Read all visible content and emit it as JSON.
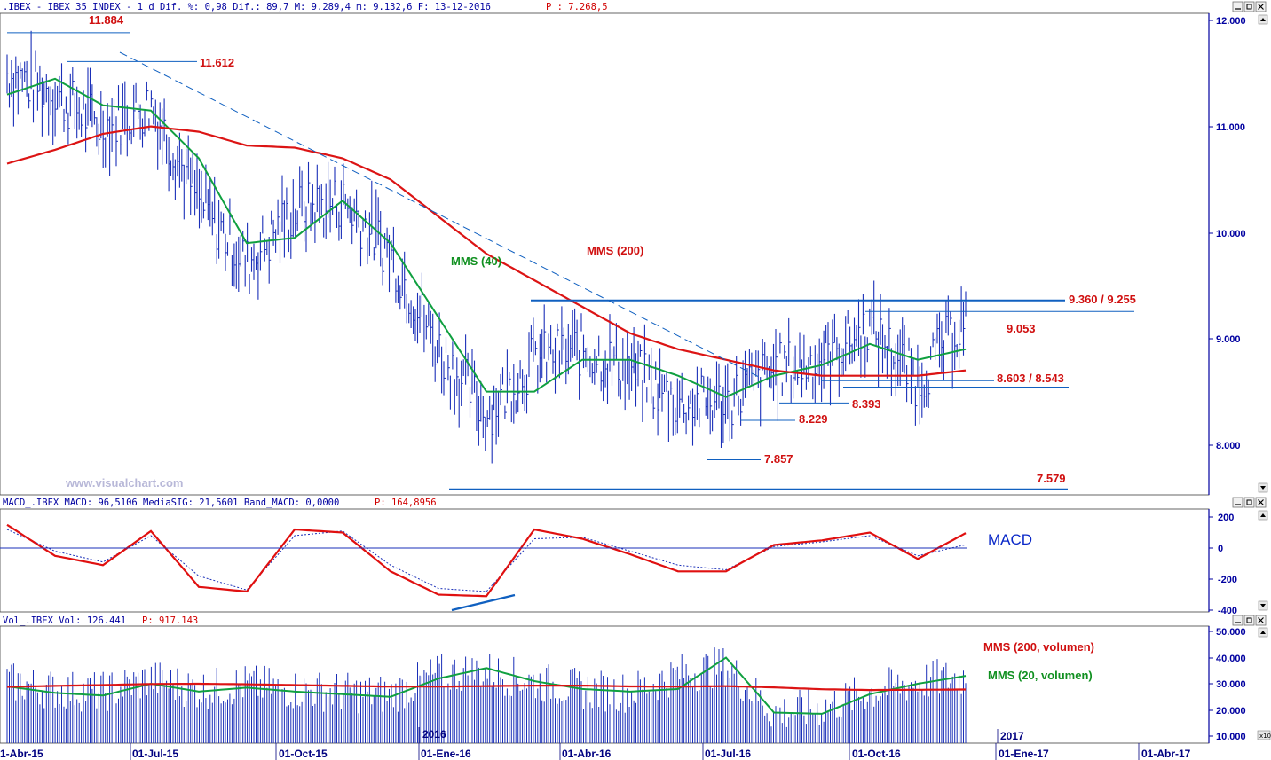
{
  "colors": {
    "price_bars": "#1a2fb8",
    "ma200": "#dc1414",
    "ma40": "#10a040",
    "macd": "#e01010",
    "signal": "#1a2fb8",
    "level_lines": "#1060c0",
    "volume_bars": "#1a2fb8",
    "axis_text": "#0000a0",
    "annotation": "#d01010"
  },
  "panels": {
    "price": {
      "header": ".IBEX - IBEX 35 INDEX -  1 d Dif. %: 0,98 Dif.: 89,7 M: 9.289,4 m: 9.132,6 F: 13-12-2016",
      "header_last": "P : 7.268,5",
      "watermark": "www.visualchart.com",
      "labels": {
        "ma40": "MMS (40)",
        "ma200": "MMS (200)"
      },
      "y_ticks": [
        "12.000",
        "11.000",
        "10.000",
        "9.000",
        "8.000"
      ]
    },
    "macd": {
      "header": "MACD_.IBEX MACD: 96,5106 MediaSIG: 21,5601 Band_MACD: 0,0000",
      "header_last": "P: 164,8956",
      "label": "MACD",
      "y_ticks": [
        "200",
        "0",
        "-200",
        "-400"
      ]
    },
    "volume": {
      "header": "Vol_.IBEX Vol: 126.441",
      "header_last": "P: 917.143",
      "labels": {
        "ma200": "MMS (200, volumen)",
        "ma20": "MMS (20, volumen)"
      },
      "y_ticks": [
        "50.000",
        "40.000",
        "30.000",
        "20.000",
        "10.000"
      ],
      "scale_badge": "x10",
      "year_labels": [
        "2016",
        "2017"
      ]
    }
  },
  "x_axis": {
    "ticks": [
      "1-Abr-15",
      "01-Jul-15",
      "01-Oct-15",
      "01-Ene-16",
      "01-Abr-16",
      "01-Jul-16",
      "01-Oct-16",
      "01-Ene-17",
      "01-Abr-17"
    ]
  },
  "chart_data": [
    {
      "type": "line",
      "title": ".IBEX - IBEX 35 INDEX",
      "x_range": [
        "2015-04-01",
        "2017-04-01"
      ],
      "ylim": [
        7500,
        12100
      ],
      "x": [
        "2015-04",
        "2015-05",
        "2015-06",
        "2015-07",
        "2015-08",
        "2015-09",
        "2015-10",
        "2015-11",
        "2015-12",
        "2016-01",
        "2016-02",
        "2016-03",
        "2016-04",
        "2016-05",
        "2016-06",
        "2016-07",
        "2016-08",
        "2016-09",
        "2016-10",
        "2016-11",
        "2016-12"
      ],
      "series": [
        {
          "name": "IBEX (daily bars)",
          "values": [
            11500,
            11300,
            11000,
            11200,
            10300,
            9700,
            10200,
            10300,
            9800,
            8900,
            8300,
            8800,
            8900,
            8700,
            8400,
            8400,
            8700,
            8800,
            9100,
            8600,
            9200
          ]
        },
        {
          "name": "MMS (40)",
          "values": [
            11300,
            11450,
            11200,
            11150,
            10700,
            9900,
            9950,
            10300,
            9900,
            9200,
            8500,
            8500,
            8800,
            8800,
            8650,
            8450,
            8650,
            8750,
            8950,
            8800,
            8900
          ]
        },
        {
          "name": "MMS (200)",
          "values": [
            10650,
            10780,
            10930,
            11000,
            10950,
            10820,
            10800,
            10700,
            10500,
            10150,
            9800,
            9550,
            9300,
            9050,
            8900,
            8800,
            8700,
            8650,
            8650,
            8650,
            8700
          ]
        }
      ],
      "levels": [
        {
          "label": "11.884",
          "value": 11884
        },
        {
          "label": "11.612",
          "value": 11612
        },
        {
          "label": "9.360 / 9.255",
          "value": 9360,
          "value2": 9255
        },
        {
          "label": "9.053",
          "value": 9053
        },
        {
          "label": "8.603 / 8.543",
          "value": 8603,
          "value2": 8543
        },
        {
          "label": "8.393",
          "value": 8393
        },
        {
          "label": "8.229",
          "value": 8229
        },
        {
          "label": "7.857",
          "value": 7857
        },
        {
          "label": "7.579",
          "value": 7579
        }
      ]
    },
    {
      "type": "line",
      "title": "MACD",
      "ylim": [
        -450,
        250
      ],
      "x": [
        "2015-04",
        "2015-05",
        "2015-06",
        "2015-07",
        "2015-08",
        "2015-09",
        "2015-10",
        "2015-11",
        "2015-12",
        "2016-01",
        "2016-02",
        "2016-03",
        "2016-04",
        "2016-05",
        "2016-06",
        "2016-07",
        "2016-08",
        "2016-09",
        "2016-10",
        "2016-11",
        "2016-12"
      ],
      "series": [
        {
          "name": "MACD",
          "values": [
            150,
            -50,
            -110,
            110,
            -250,
            -280,
            120,
            100,
            -150,
            -300,
            -310,
            120,
            60,
            -40,
            -150,
            -150,
            20,
            50,
            100,
            -70,
            96.5
          ]
        },
        {
          "name": "MediaSIG",
          "values": [
            120,
            -20,
            -90,
            80,
            -180,
            -270,
            80,
            110,
            -110,
            -260,
            -280,
            60,
            70,
            -20,
            -110,
            -140,
            10,
            40,
            80,
            -50,
            21.6
          ]
        }
      ]
    },
    {
      "type": "bar",
      "title": "Vol",
      "ylim": [
        10000,
        52000
      ],
      "x": [
        "2015-04",
        "2015-05",
        "2015-06",
        "2015-07",
        "2015-08",
        "2015-09",
        "2015-10",
        "2015-11",
        "2015-12",
        "2016-01",
        "2016-02",
        "2016-03",
        "2016-04",
        "2016-05",
        "2016-06",
        "2016-07",
        "2016-08",
        "2016-09",
        "2016-10",
        "2016-11",
        "2016-12"
      ],
      "series": [
        {
          "name": "Vol",
          "values": [
            30000,
            27000,
            26000,
            31000,
            27000,
            29000,
            27000,
            26000,
            25000,
            33000,
            34000,
            30000,
            27000,
            26000,
            33000,
            36000,
            18000,
            20000,
            26000,
            30000,
            32000
          ]
        },
        {
          "name": "MMS (200, volumen)",
          "values": [
            28800,
            29200,
            29500,
            29900,
            30000,
            29800,
            29500,
            29200,
            28900,
            28900,
            29100,
            29300,
            29300,
            29000,
            28900,
            29100,
            28600,
            27900,
            27600,
            27700,
            27800
          ]
        },
        {
          "name": "MMS (20, volumen)",
          "values": [
            29000,
            26500,
            25500,
            30000,
            27000,
            28500,
            27000,
            26000,
            25000,
            32000,
            36000,
            31000,
            28000,
            27000,
            28000,
            40000,
            19000,
            18500,
            26000,
            30000,
            33000
          ]
        }
      ]
    }
  ]
}
